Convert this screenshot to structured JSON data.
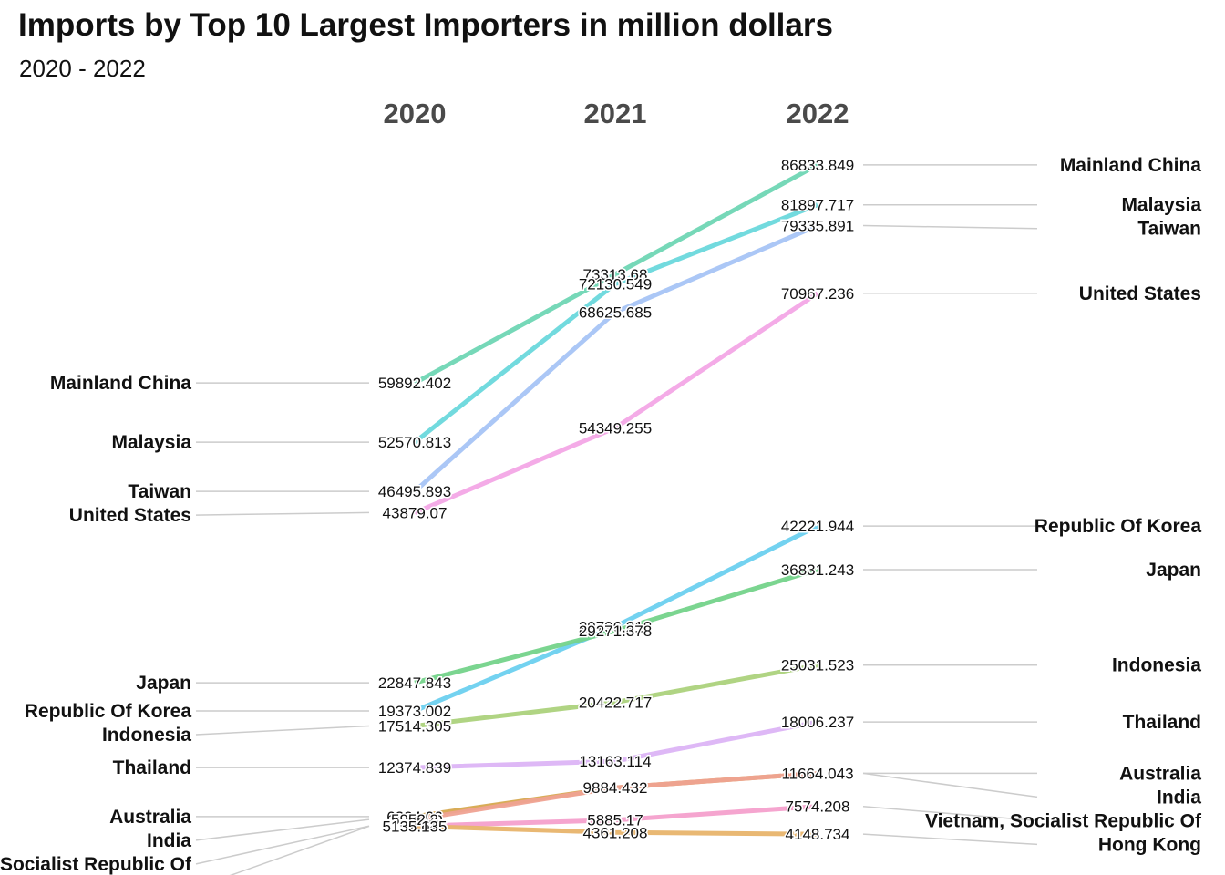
{
  "title": "Imports by Top 10 Largest Importers in million dollars",
  "subtitle": "2020 - 2022",
  "chart_data": {
    "type": "line",
    "title": "Imports by Top 10 Largest Importers in million dollars",
    "subtitle": "2020 - 2022",
    "x": [
      "2020",
      "2021",
      "2022"
    ],
    "ylabel": "",
    "xlabel": "",
    "grid": false,
    "series": [
      {
        "name": "Mainland China",
        "values": [
          59892.402,
          73313.68,
          86833.849
        ],
        "labels": [
          "59892.402",
          "73313.68",
          "86833.849"
        ],
        "color": "#6fd6b4"
      },
      {
        "name": "Malaysia",
        "values": [
          52570.813,
          72130.549,
          81897.717
        ],
        "labels": [
          "52570.813",
          "72130.549",
          "81897.717"
        ],
        "color": "#6ad8dc"
      },
      {
        "name": "Taiwan",
        "values": [
          46495.893,
          68625.685,
          79335.891
        ],
        "labels": [
          "46495.893",
          "68625.685",
          "79335.891"
        ],
        "color": "#a6c4f5"
      },
      {
        "name": "United States",
        "values": [
          43879.07,
          54349.255,
          70967.236
        ],
        "labels": [
          "43879.07",
          "54349.255",
          "70967.236"
        ],
        "color": "#f3a6e6"
      },
      {
        "name": "Republic Of Korea",
        "values": [
          19373.002,
          29796.218,
          42221.944
        ],
        "labels": [
          "19373.002",
          "29796.218",
          "42221.944"
        ],
        "color": "#6cd0ef"
      },
      {
        "name": "Japan",
        "values": [
          22847.843,
          29271.378,
          36831.243
        ],
        "labels": [
          "22847.843",
          "29271.378",
          "36831.243"
        ],
        "color": "#74d38a"
      },
      {
        "name": "Indonesia",
        "values": [
          17514.305,
          20422.717,
          25031.523
        ],
        "labels": [
          "17514.305",
          "20422.717",
          "25031.523"
        ],
        "color": "#acd27c"
      },
      {
        "name": "Thailand",
        "values": [
          12374.839,
          13163.114,
          18006.237
        ],
        "labels": [
          "12374.839",
          "13163.114",
          "18006.237"
        ],
        "color": "#dcb4f6"
      },
      {
        "name": "Australia",
        "values": [
          6324.06,
          9884.432,
          11664.043
        ],
        "labels": [
          "6324.06",
          "9884.432",
          "11664.043"
        ],
        "color": "#d6a84e"
      },
      {
        "name": "India",
        "values": [
          5952.2,
          9884.432,
          11664.043
        ],
        "labels": [
          "5952.2",
          "9884.432",
          "11664.043"
        ],
        "color": "#efa292"
      },
      {
        "name": "Vietnam, Socialist Republic Of",
        "values": [
          5152.645,
          5885.17,
          7574.208
        ],
        "labels": [
          "5152.645",
          "5885.17",
          "7574.208"
        ],
        "color": "#f4a0cc"
      },
      {
        "name": "Hong Kong",
        "values": [
          5135.135,
          4361.208,
          4148.734
        ],
        "labels": [
          "5135.135",
          "4361.208",
          "4148.734"
        ],
        "color": "#e8b46c"
      }
    ]
  }
}
